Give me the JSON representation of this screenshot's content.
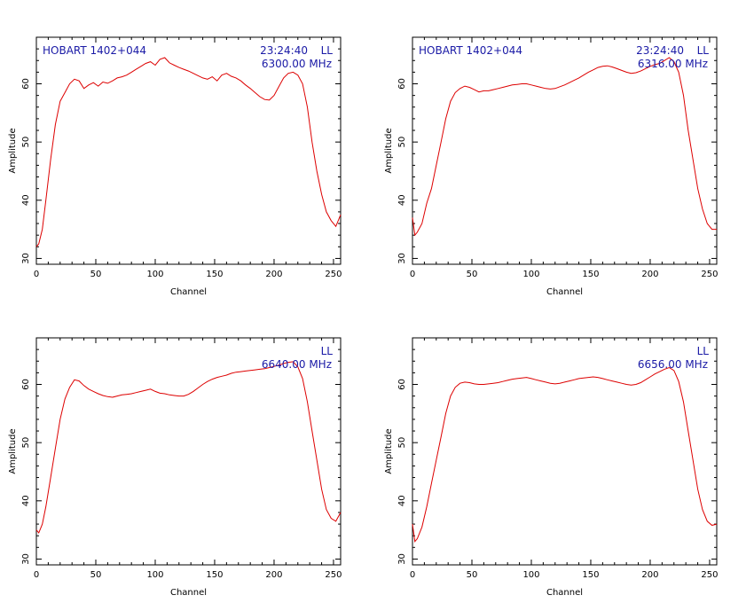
{
  "chart_data": [
    {
      "type": "line",
      "source": "HOBART 1402+044",
      "time": "23:24:40",
      "pol": "LL",
      "freq": "6300.00 MHz",
      "xlabel": "Channel",
      "ylabel": "Amplitude",
      "xlim": [
        0,
        256
      ],
      "ylim": [
        29,
        68
      ],
      "xticks": [
        0,
        50,
        100,
        150,
        200,
        250
      ],
      "yticks": [
        30,
        40,
        50,
        60
      ],
      "line_color": "#dd0000",
      "series": [
        {
          "x": [
            0,
            2,
            5,
            8,
            12,
            16,
            20,
            24,
            28,
            32,
            36,
            40,
            44,
            48,
            52,
            56,
            60,
            64,
            68,
            72,
            76,
            80,
            84,
            88,
            92,
            96,
            100,
            104,
            108,
            112,
            116,
            120,
            124,
            128,
            132,
            136,
            140,
            144,
            148,
            152,
            156,
            160,
            164,
            168,
            172,
            176,
            180,
            184,
            188,
            192,
            196,
            200,
            204,
            208,
            212,
            216,
            220,
            224,
            228,
            232,
            236,
            240,
            244,
            248,
            252,
            256
          ],
          "y": [
            32,
            32.5,
            35,
            40,
            47,
            53,
            57,
            58.5,
            60,
            60.8,
            60.5,
            59.2,
            59.8,
            60.2,
            59.6,
            60.3,
            60.1,
            60.5,
            61,
            61.2,
            61.5,
            62,
            62.5,
            63,
            63.5,
            63.8,
            63.2,
            64.2,
            64.5,
            63.6,
            63.2,
            62.8,
            62.5,
            62.2,
            61.8,
            61.4,
            61,
            60.8,
            61.2,
            60.5,
            61.5,
            61.8,
            61.3,
            61,
            60.5,
            59.8,
            59.2,
            58.5,
            57.8,
            57.3,
            57.2,
            58,
            59.5,
            61,
            61.8,
            62,
            61.5,
            60,
            56,
            50,
            45,
            41,
            38,
            36.5,
            35.5,
            37.5
          ]
        }
      ]
    },
    {
      "type": "line",
      "source": "HOBART 1402+044",
      "time": "23:24:40",
      "pol": "LL",
      "freq": "6316.00 MHz",
      "xlabel": "Channel",
      "ylabel": "Amplitude",
      "xlim": [
        0,
        256
      ],
      "ylim": [
        29,
        68
      ],
      "xticks": [
        0,
        50,
        100,
        150,
        200,
        250
      ],
      "yticks": [
        30,
        40,
        50,
        60
      ],
      "line_color": "#dd0000",
      "series": [
        {
          "x": [
            0,
            2,
            4,
            8,
            12,
            16,
            20,
            24,
            28,
            32,
            36,
            40,
            44,
            48,
            52,
            56,
            60,
            64,
            68,
            72,
            76,
            80,
            84,
            88,
            92,
            96,
            100,
            104,
            108,
            112,
            116,
            120,
            124,
            128,
            132,
            136,
            140,
            144,
            148,
            152,
            156,
            160,
            164,
            168,
            172,
            176,
            180,
            184,
            188,
            192,
            196,
            200,
            204,
            208,
            212,
            216,
            220,
            224,
            228,
            232,
            236,
            240,
            244,
            248,
            252,
            256
          ],
          "y": [
            37,
            34,
            34.5,
            36,
            39.5,
            42,
            46,
            50,
            54,
            57,
            58.5,
            59.2,
            59.6,
            59.4,
            59,
            58.6,
            58.8,
            58.8,
            59,
            59.2,
            59.4,
            59.6,
            59.8,
            59.9,
            60,
            60,
            59.8,
            59.6,
            59.4,
            59.2,
            59.1,
            59.2,
            59.5,
            59.8,
            60.2,
            60.6,
            61,
            61.5,
            62,
            62.4,
            62.8,
            63,
            63.1,
            62.9,
            62.6,
            62.3,
            62,
            61.8,
            61.9,
            62.2,
            62.6,
            63,
            63.3,
            63.5,
            64,
            64.5,
            63.8,
            62,
            58,
            52,
            47,
            42,
            38.5,
            36,
            35,
            35
          ]
        }
      ]
    },
    {
      "type": "line",
      "pol": "LL",
      "freq": "6640.00 MHz",
      "xlabel": "Channel",
      "ylabel": "Amplitude",
      "xlim": [
        0,
        256
      ],
      "ylim": [
        29,
        68
      ],
      "xticks": [
        0,
        50,
        100,
        150,
        200,
        250
      ],
      "yticks": [
        30,
        40,
        50,
        60
      ],
      "line_color": "#dd0000",
      "series": [
        {
          "x": [
            0,
            2,
            5,
            8,
            12,
            16,
            20,
            24,
            28,
            32,
            36,
            40,
            44,
            48,
            52,
            56,
            60,
            64,
            68,
            72,
            76,
            80,
            84,
            88,
            92,
            96,
            100,
            104,
            108,
            112,
            116,
            120,
            124,
            128,
            132,
            136,
            140,
            144,
            148,
            152,
            156,
            160,
            164,
            168,
            172,
            176,
            180,
            184,
            188,
            192,
            196,
            200,
            204,
            208,
            212,
            216,
            220,
            224,
            228,
            232,
            236,
            240,
            244,
            248,
            252,
            256
          ],
          "y": [
            35,
            34.5,
            36,
            39,
            44,
            49,
            54,
            57.5,
            59.5,
            60.8,
            60.6,
            59.8,
            59.2,
            58.8,
            58.4,
            58.1,
            57.9,
            57.8,
            58,
            58.2,
            58.3,
            58.4,
            58.6,
            58.8,
            59,
            59.2,
            58.8,
            58.5,
            58.4,
            58.2,
            58.1,
            58,
            58,
            58.3,
            58.8,
            59.4,
            60,
            60.5,
            60.9,
            61.2,
            61.4,
            61.6,
            61.9,
            62.1,
            62.2,
            62.3,
            62.4,
            62.5,
            62.6,
            62.7,
            62.9,
            63.1,
            63.3,
            63.6,
            63.8,
            63.9,
            63,
            61,
            57,
            52,
            47,
            42,
            38.5,
            37,
            36.5,
            38
          ]
        }
      ]
    },
    {
      "type": "line",
      "pol": "LL",
      "freq": "6656.00 MHz",
      "xlabel": "Channel",
      "ylabel": "Amplitude",
      "xlim": [
        0,
        256
      ],
      "ylim": [
        29,
        68
      ],
      "xticks": [
        0,
        50,
        100,
        150,
        200,
        250
      ],
      "yticks": [
        30,
        40,
        50,
        60
      ],
      "line_color": "#dd0000",
      "series": [
        {
          "x": [
            0,
            2,
            4,
            8,
            12,
            16,
            20,
            24,
            28,
            32,
            36,
            40,
            44,
            48,
            52,
            56,
            60,
            64,
            68,
            72,
            76,
            80,
            84,
            88,
            92,
            96,
            100,
            104,
            108,
            112,
            116,
            120,
            124,
            128,
            132,
            136,
            140,
            144,
            148,
            152,
            156,
            160,
            164,
            168,
            172,
            176,
            180,
            184,
            188,
            192,
            196,
            200,
            204,
            208,
            212,
            216,
            220,
            224,
            228,
            232,
            236,
            240,
            244,
            248,
            252,
            256
          ],
          "y": [
            36,
            33,
            33.5,
            35.5,
            39,
            43,
            47,
            51,
            55,
            58,
            59.5,
            60.2,
            60.4,
            60.3,
            60.1,
            60,
            60,
            60.1,
            60.2,
            60.3,
            60.5,
            60.7,
            60.9,
            61,
            61.1,
            61.2,
            61,
            60.8,
            60.6,
            60.4,
            60.2,
            60.1,
            60.2,
            60.4,
            60.6,
            60.8,
            61,
            61.1,
            61.2,
            61.3,
            61.2,
            61,
            60.8,
            60.6,
            60.4,
            60.2,
            60,
            59.9,
            60,
            60.3,
            60.8,
            61.3,
            61.8,
            62.2,
            62.6,
            62.9,
            62.4,
            60.5,
            57,
            52,
            47,
            42,
            38.5,
            36.5,
            35.8,
            36
          ]
        }
      ]
    }
  ]
}
